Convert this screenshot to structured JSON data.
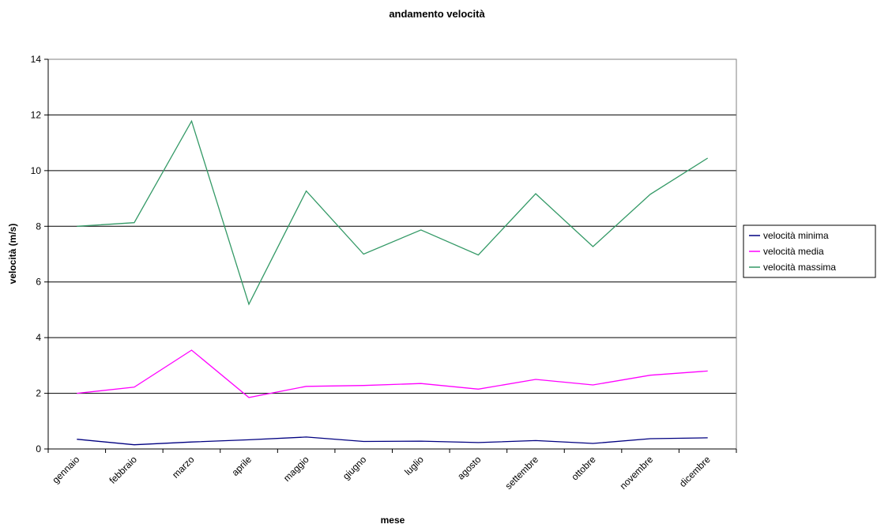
{
  "chart_data": {
    "type": "line",
    "title": "andamento velocità",
    "xlabel": "mese",
    "ylabel": "velocità (m/s)",
    "categories": [
      "gennaio",
      "febbraio",
      "marzo",
      "aprile",
      "maggio",
      "giugno",
      "luglio",
      "agosto",
      "settembre",
      "ottobre",
      "novembre",
      "dicembre"
    ],
    "ylim": [
      0,
      14
    ],
    "yticks": [
      0,
      2,
      4,
      6,
      8,
      10,
      12,
      14
    ],
    "grid": true,
    "legend_position": "right",
    "series": [
      {
        "name": "velocità minima",
        "color": "#000080",
        "values": [
          0.35,
          0.15,
          0.25,
          0.33,
          0.43,
          0.27,
          0.28,
          0.23,
          0.3,
          0.2,
          0.37,
          0.4
        ]
      },
      {
        "name": "velocità media",
        "color": "#FF00FF",
        "values": [
          2.0,
          2.22,
          3.55,
          1.85,
          2.25,
          2.28,
          2.35,
          2.15,
          2.5,
          2.3,
          2.65,
          2.8
        ]
      },
      {
        "name": "velocità massima",
        "color": "#339966",
        "values": [
          8.0,
          8.13,
          11.78,
          5.2,
          9.27,
          7.0,
          7.87,
          6.97,
          9.17,
          7.27,
          9.15,
          10.45
        ]
      }
    ]
  }
}
